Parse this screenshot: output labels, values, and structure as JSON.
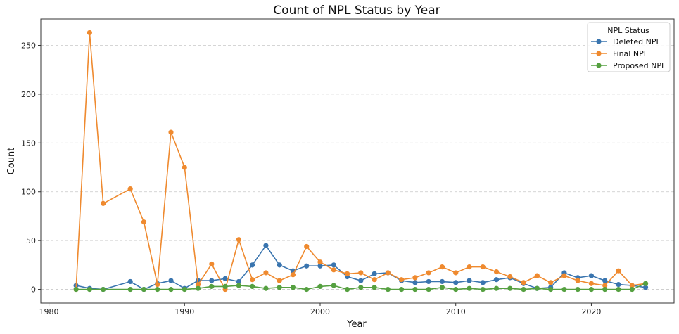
{
  "chart_data": {
    "type": "line",
    "title": "Count of NPL Status by Year",
    "xlabel": "Year",
    "ylabel": "Count",
    "xlim": [
      1979.4,
      2026.1
    ],
    "ylim": [
      -14,
      277
    ],
    "xticks": [
      1980,
      1990,
      2000,
      2010,
      2020
    ],
    "yticks": [
      0,
      50,
      100,
      150,
      200,
      250
    ],
    "grid": "y-dashed",
    "legend": {
      "title": "NPL Status",
      "placement": "top-right"
    },
    "series": [
      {
        "name": "Deleted NPL",
        "color": "#3a75af",
        "x": [
          1982,
          1983,
          1984,
          1986,
          1987,
          1988,
          1989,
          1990,
          1991,
          1992,
          1993,
          1994,
          1995,
          1996,
          1997,
          1998,
          1999,
          2000,
          2001,
          2002,
          2003,
          2004,
          2005,
          2006,
          2007,
          2008,
          2009,
          2010,
          2011,
          2012,
          2013,
          2014,
          2015,
          2016,
          2017,
          2018,
          2019,
          2020,
          2021,
          2022,
          2023,
          2024
        ],
        "y": [
          4,
          1,
          0,
          8,
          0,
          6,
          9,
          1,
          9,
          9,
          11,
          8,
          25,
          45,
          25,
          19,
          24,
          24,
          25,
          13,
          9,
          16,
          17,
          9,
          7,
          8,
          8,
          7,
          9,
          7,
          10,
          12,
          6,
          1,
          2,
          17,
          12,
          14,
          9,
          5,
          4,
          2
        ]
      },
      {
        "name": "Final NPL",
        "color": "#ef8a2f",
        "x": [
          1982,
          1983,
          1984,
          1986,
          1987,
          1988,
          1989,
          1990,
          1991,
          1992,
          1993,
          1994,
          1995,
          1996,
          1997,
          1998,
          1999,
          2000,
          2001,
          2002,
          2003,
          2004,
          2005,
          2006,
          2007,
          2008,
          2009,
          2010,
          2011,
          2012,
          2013,
          2014,
          2015,
          2016,
          2017,
          2018,
          2019,
          2020,
          2021,
          2022,
          2023,
          2024
        ],
        "y": [
          0,
          263,
          88,
          103,
          69,
          5,
          161,
          125,
          5,
          26,
          0,
          51,
          10,
          17,
          9,
          15,
          44,
          28,
          20,
          16,
          17,
          10,
          17,
          10,
          12,
          17,
          23,
          17,
          23,
          23,
          18,
          13,
          7,
          14,
          7,
          14,
          9,
          6,
          4,
          19,
          4,
          6
        ]
      },
      {
        "name": "Proposed NPL",
        "color": "#55a040",
        "x": [
          1982,
          1983,
          1984,
          1986,
          1987,
          1988,
          1989,
          1990,
          1991,
          1992,
          1993,
          1994,
          1995,
          1996,
          1997,
          1998,
          1999,
          2000,
          2001,
          2002,
          2003,
          2004,
          2005,
          2006,
          2007,
          2008,
          2009,
          2010,
          2011,
          2012,
          2013,
          2014,
          2015,
          2016,
          2017,
          2018,
          2019,
          2020,
          2021,
          2022,
          2023,
          2024
        ],
        "y": [
          0,
          0,
          0,
          0,
          0,
          0,
          0,
          0,
          1,
          3,
          3,
          4,
          3,
          1,
          2,
          2,
          0,
          3,
          4,
          0,
          2,
          2,
          0,
          0,
          0,
          0,
          2,
          0,
          1,
          0,
          1,
          1,
          0,
          1,
          0,
          0,
          0,
          0,
          0,
          0,
          0,
          6
        ]
      }
    ]
  }
}
